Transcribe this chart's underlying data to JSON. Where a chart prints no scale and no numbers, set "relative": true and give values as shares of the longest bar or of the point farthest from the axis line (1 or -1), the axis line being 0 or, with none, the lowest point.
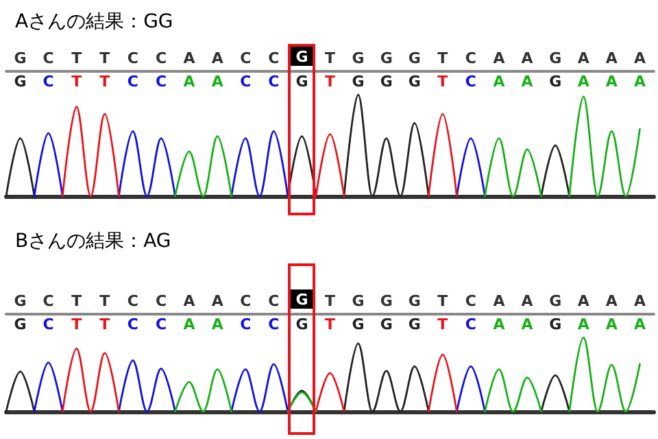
{
  "chart_data": [
    {
      "type": "line",
      "title": "Aさんの結果：GG",
      "relative": true,
      "tick_labels": "x",
      "marker": "none",
      "line_style": "solid",
      "categories": [
        null,
        "G",
        null,
        "C",
        null,
        "T",
        null,
        "T",
        null,
        "C",
        null,
        "C",
        null,
        "A",
        null,
        "A",
        null,
        "C",
        null,
        "C",
        null,
        "G",
        null,
        "T",
        null,
        "G",
        null,
        "G",
        null,
        "G",
        null,
        "T",
        null,
        "C",
        null,
        "A",
        null,
        "A",
        null,
        "G",
        null,
        "A",
        null,
        "A",
        null,
        "A",
        null
      ],
      "annotations": [
        "G",
        "C",
        "T",
        "T",
        "C",
        "C",
        "A",
        "A",
        "C",
        "C",
        "G",
        "T",
        "G",
        "G",
        "G",
        "T",
        "C",
        "A",
        "A",
        "G",
        "A",
        "A",
        "A"
      ],
      "series": [
        {
          "color": "#222222",
          "values": [
            0,
            0.57,
            0,
            null,
            null,
            null,
            null,
            null,
            null,
            null,
            null,
            null,
            null,
            null,
            null,
            null,
            null,
            null,
            null,
            null,
            0,
            0.59,
            0,
            null,
            0,
            1,
            0,
            0.57,
            0,
            0.72,
            0,
            null,
            null,
            null,
            null,
            null,
            null,
            null,
            0,
            0.5,
            0,
            null,
            null,
            null,
            null,
            null,
            null
          ]
        },
        {
          "color": "#1010e0",
          "values": [
            null,
            null,
            0,
            0.62,
            0,
            null,
            null,
            null,
            0,
            0.64,
            0,
            0.57,
            0,
            null,
            null,
            null,
            0,
            0.57,
            0,
            0.64,
            0,
            null,
            null,
            null,
            null,
            null,
            null,
            null,
            null,
            null,
            null,
            null,
            0,
            0.57,
            0,
            null,
            null,
            null,
            null,
            null,
            null,
            null,
            null,
            null,
            null,
            null,
            null
          ]
        },
        {
          "color": "#e8141c",
          "values": [
            null,
            null,
            null,
            null,
            0,
            0.88,
            0,
            0.81,
            0,
            null,
            null,
            null,
            null,
            null,
            null,
            null,
            null,
            null,
            null,
            null,
            null,
            null,
            0,
            0.61,
            0,
            null,
            null,
            null,
            null,
            null,
            0,
            0.81,
            0,
            null,
            null,
            null,
            null,
            null,
            null,
            null,
            null,
            null,
            null,
            null,
            null,
            null,
            null
          ]
        },
        {
          "color": "#18b018",
          "values": [
            null,
            null,
            null,
            null,
            null,
            null,
            null,
            null,
            null,
            null,
            null,
            null,
            0,
            0.44,
            0,
            0.59,
            0,
            null,
            null,
            null,
            null,
            null,
            null,
            null,
            null,
            null,
            null,
            null,
            null,
            null,
            null,
            null,
            null,
            null,
            0,
            0.57,
            0,
            0.46,
            0,
            null,
            0,
            0.98,
            0,
            0.64,
            0,
            0.66,
            null
          ]
        }
      ]
    },
    {
      "type": "line",
      "title": "Bさんの結果：AG",
      "relative": true,
      "tick_labels": "x",
      "marker": "none",
      "line_style": "solid",
      "categories": [
        null,
        "G",
        null,
        "C",
        null,
        "T",
        null,
        "T",
        null,
        "C",
        null,
        "C",
        null,
        "A",
        null,
        "A",
        null,
        "C",
        null,
        "C",
        null,
        "G",
        null,
        "T",
        null,
        "G",
        null,
        "G",
        null,
        "G",
        null,
        "T",
        null,
        "C",
        null,
        "A",
        null,
        "A",
        null,
        "G",
        null,
        "A",
        null,
        "A",
        null,
        "A",
        null
      ],
      "annotations": [
        "G",
        "C",
        "T",
        "T",
        "C",
        "C",
        "A",
        "A",
        "C",
        "C",
        "G",
        "T",
        "G",
        "G",
        "G",
        "T",
        "C",
        "A",
        "A",
        "G",
        "A",
        "A",
        "A"
      ],
      "series": [
        {
          "color": "#222222",
          "values": [
            0,
            0.54,
            0,
            null,
            null,
            null,
            null,
            null,
            null,
            null,
            null,
            null,
            null,
            null,
            null,
            null,
            null,
            null,
            null,
            null,
            0,
            0.28,
            0,
            null,
            0,
            0.92,
            0,
            0.55,
            0,
            0.61,
            0,
            null,
            null,
            null,
            null,
            null,
            null,
            null,
            0,
            0.49,
            0,
            null,
            null,
            null,
            null,
            null,
            null
          ]
        },
        {
          "color": "#1010e0",
          "values": [
            null,
            null,
            0,
            0.66,
            0,
            null,
            null,
            null,
            0,
            0.69,
            0,
            0.58,
            0,
            null,
            null,
            null,
            0,
            0.57,
            0,
            0.64,
            0,
            null,
            null,
            null,
            null,
            null,
            null,
            null,
            null,
            null,
            null,
            null,
            0,
            0.61,
            0,
            null,
            null,
            null,
            null,
            null,
            null,
            null,
            null,
            null,
            null,
            null,
            null
          ]
        },
        {
          "color": "#e8141c",
          "values": [
            null,
            null,
            null,
            null,
            0,
            0.85,
            0,
            0.79,
            0,
            null,
            null,
            null,
            null,
            null,
            null,
            null,
            null,
            null,
            null,
            null,
            null,
            null,
            0,
            0.52,
            0,
            null,
            null,
            null,
            null,
            null,
            0,
            0.77,
            0,
            null,
            null,
            null,
            null,
            null,
            null,
            null,
            null,
            null,
            null,
            null,
            null,
            null,
            null
          ]
        },
        {
          "color": "#18b018",
          "values": [
            null,
            null,
            null,
            null,
            null,
            null,
            null,
            null,
            null,
            null,
            null,
            null,
            0,
            0.4,
            0,
            0.57,
            0,
            null,
            null,
            null,
            0,
            0.26,
            0,
            null,
            null,
            null,
            null,
            null,
            null,
            null,
            null,
            null,
            null,
            null,
            0,
            0.57,
            0,
            0.46,
            0,
            null,
            0,
            1,
            0,
            0.63,
            0,
            0.64,
            null
          ]
        }
      ]
    }
  ]
}
